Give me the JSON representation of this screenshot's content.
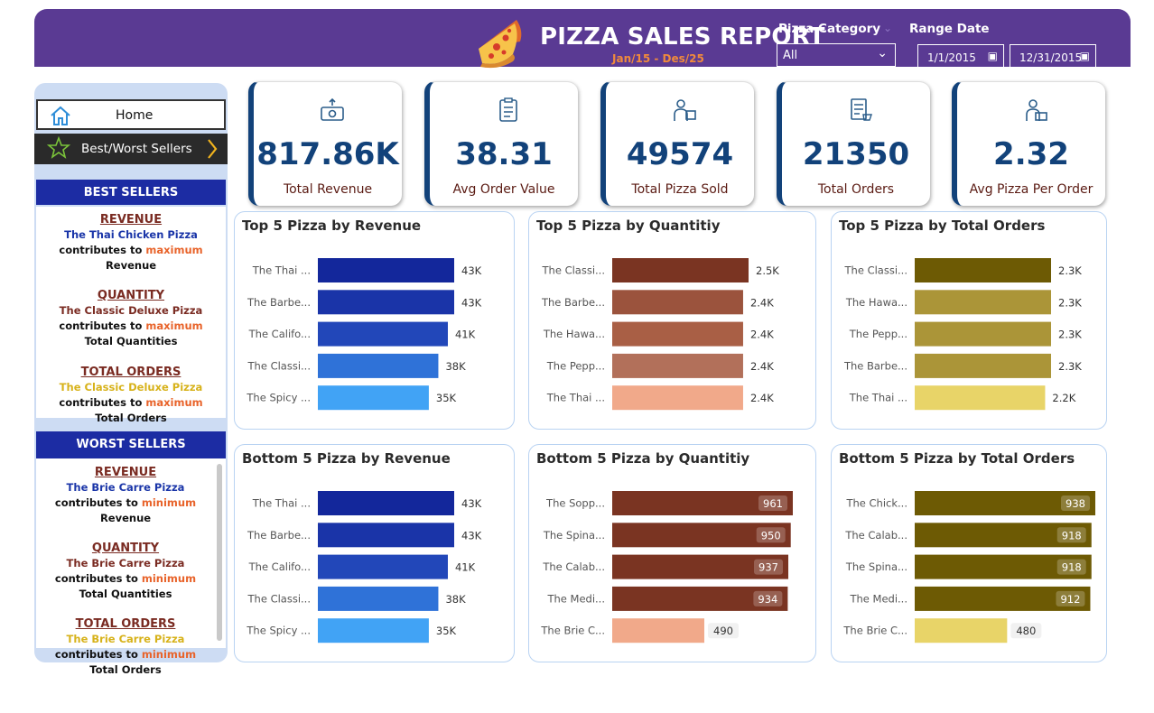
{
  "header": {
    "title": "PIZZA SALES REPORT",
    "subtitle": "Jan/15 - Des/25",
    "category_label": "Pizza Category",
    "category_value": "All",
    "range_label": "Range Date",
    "date_start": "1/1/2015",
    "date_end": "12/31/2015",
    "background": "#5a3a93"
  },
  "sidebar": {
    "home_label": "Home",
    "best_worst_label": "Best/Worst Sellers",
    "best": {
      "head": "BEST SELLERS",
      "revenue_title": "REVENUE",
      "revenue_a": "The Thai Chicken Pizza",
      "revenue_b": " contributes to ",
      "revenue_c": "maximum",
      "revenue_d": " Revenue",
      "quantity_title": "QUANTITY",
      "quantity_a": "The Classic Deluxe Pizza",
      "quantity_b": " contributes to ",
      "quantity_c": "maximum",
      "quantity_d": " Total Quantities",
      "orders_title": "TOTAL ORDERS",
      "orders_a": "The Classic Deluxe Pizza",
      "orders_b": " contributes to ",
      "orders_c": "maximum",
      "orders_d": " Total Orders"
    },
    "worst": {
      "head": "WORST SELLERS",
      "revenue_title": "REVENUE",
      "revenue_a": "The Brie Carre Pizza",
      "revenue_b": " contributes to ",
      "revenue_c": "minimum",
      "revenue_d": " Revenue",
      "quantity_title": "QUANTITY",
      "quantity_a": "The Brie Carre Pizza",
      "quantity_b": " contributes to ",
      "quantity_c": "minimum",
      "quantity_d": " Total Quantities",
      "orders_title": "TOTAL ORDERS",
      "orders_a": "The Brie Carre Pizza",
      "orders_b": " contributes to ",
      "orders_c": "minimum",
      "orders_d": " Total Orders"
    }
  },
  "kpis": [
    {
      "value": "817.86K",
      "label": "Total Revenue",
      "icon": "money-icon"
    },
    {
      "value": "38.31",
      "label": "Avg Order Value",
      "icon": "clipboard-icon"
    },
    {
      "value": "49574",
      "label": "Total Pizza Sold",
      "icon": "delivery-icon"
    },
    {
      "value": "21350",
      "label": "Total Orders",
      "icon": "order-list-icon"
    },
    {
      "value": "2.32",
      "label": "Avg Pizza Per Order",
      "icon": "delivery-person-icon"
    }
  ],
  "chart_data": [
    {
      "type": "bar",
      "title": "Top 5 Pizza by Revenue",
      "categories": [
        "The Thai ...",
        "The Barbe...",
        "The Califo...",
        "The Classi...",
        "The Spicy ..."
      ],
      "values": [
        43,
        43,
        41,
        38,
        35
      ],
      "labels": [
        "43K",
        "43K",
        "41K",
        "38K",
        "35K"
      ],
      "colors": [
        "#13279b",
        "#1a34a8",
        "#2247b9",
        "#2f72d8",
        "#41a3f5"
      ],
      "label_style": "outside"
    },
    {
      "type": "bar",
      "title": "Top 5 Pizza by Quantitiy",
      "categories": [
        "The Classi...",
        "The Barbe...",
        "The Hawa...",
        "The Pepp...",
        "The Thai ..."
      ],
      "values": [
        2.5,
        2.4,
        2.4,
        2.4,
        2.4
      ],
      "labels": [
        "2.5K",
        "2.4K",
        "2.4K",
        "2.4K",
        "2.4K"
      ],
      "colors": [
        "#7a3422",
        "#9b533d",
        "#a95f45",
        "#b2705a",
        "#f1a98a"
      ],
      "label_style": "outside"
    },
    {
      "type": "bar",
      "title": "Top 5 Pizza by Total Orders",
      "categories": [
        "The Classi...",
        "The Hawa...",
        "The Pepp...",
        "The Barbe...",
        "The Thai ..."
      ],
      "values": [
        2.3,
        2.3,
        2.3,
        2.3,
        2.2
      ],
      "labels": [
        "2.3K",
        "2.3K",
        "2.3K",
        "2.3K",
        "2.2K"
      ],
      "colors": [
        "#6d5a04",
        "#ab9538",
        "#ab9538",
        "#ab9538",
        "#e8d468"
      ],
      "label_style": "outside"
    },
    {
      "type": "bar",
      "title": "Bottom 5 Pizza by Revenue",
      "categories": [
        "The Thai ...",
        "The Barbe...",
        "The Califo...",
        "The Classi...",
        "The Spicy ..."
      ],
      "values": [
        43,
        43,
        41,
        38,
        35
      ],
      "labels": [
        "43K",
        "43K",
        "41K",
        "38K",
        "35K"
      ],
      "colors": [
        "#13279b",
        "#1a34a8",
        "#2247b9",
        "#2f72d8",
        "#41a3f5"
      ],
      "label_style": "outside"
    },
    {
      "type": "bar",
      "title": "Bottom 5 Pizza by Quantitiy",
      "categories": [
        "The Sopp...",
        "The Spina...",
        "The Calab...",
        "The Medi...",
        "The Brie C..."
      ],
      "values": [
        961,
        950,
        937,
        934,
        490
      ],
      "labels": [
        "961",
        "950",
        "937",
        "934",
        "490"
      ],
      "colors": [
        "#7a3422",
        "#7a3422",
        "#7a3422",
        "#7a3422",
        "#f1a98a"
      ],
      "label_style": "inside"
    },
    {
      "type": "bar",
      "title": "Bottom 5 Pizza by Total Orders",
      "categories": [
        "The Chick...",
        "The Calab...",
        "The Spina...",
        "The Medi...",
        "The Brie C..."
      ],
      "values": [
        938,
        918,
        918,
        912,
        480
      ],
      "labels": [
        "938",
        "918",
        "918",
        "912",
        "480"
      ],
      "colors": [
        "#6d5a04",
        "#6d5a04",
        "#6d5a04",
        "#6d5a04",
        "#e8d468"
      ],
      "label_style": "inside"
    }
  ]
}
